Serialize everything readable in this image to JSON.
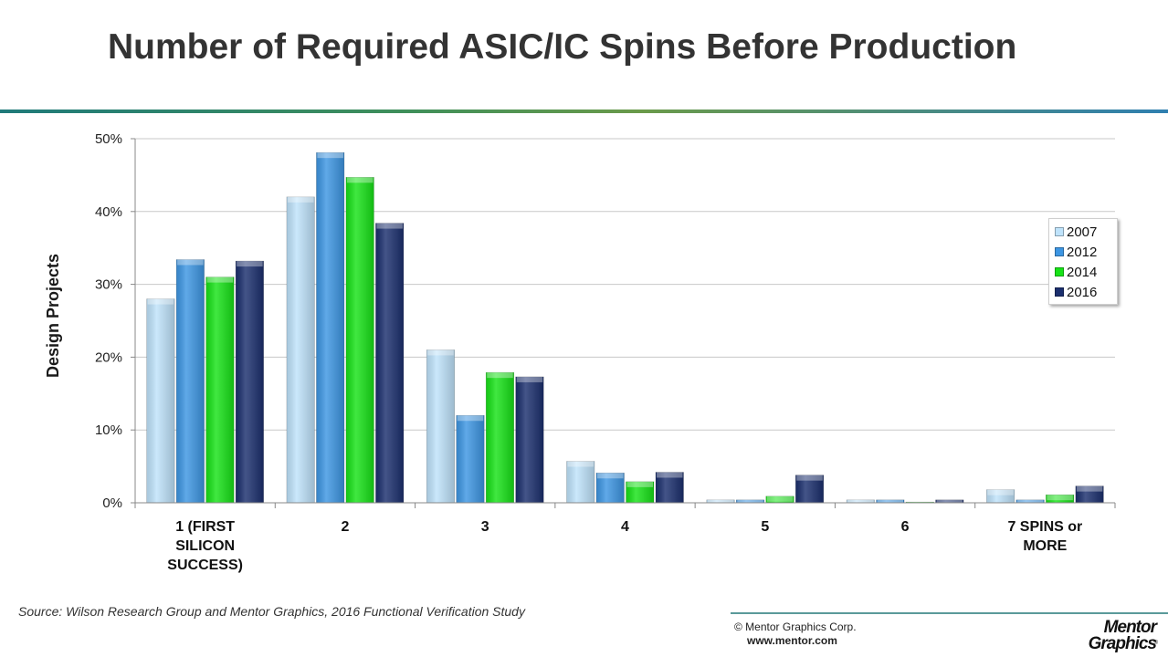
{
  "slide": {
    "title": "Number of Required ASIC/IC Spins Before Production",
    "source": "Source:  Wilson Research Group and Mentor Graphics, 2016 Functional Verification Study",
    "copyright": "© Mentor Graphics Corp.",
    "website": "www.mentor.com",
    "logo_text": [
      "Mentor",
      "Graphics"
    ],
    "logo_mark": "®"
  },
  "chart_data": {
    "type": "bar",
    "title": "Number of Required ASIC/IC Spins Before Production",
    "xlabel": "",
    "ylabel": "Design Projects",
    "ylim": [
      0,
      50
    ],
    "yticks": [
      0,
      10,
      20,
      30,
      40,
      50
    ],
    "ytick_labels": [
      "0%",
      "10%",
      "20%",
      "30%",
      "40%",
      "50%"
    ],
    "grid": true,
    "legend_position": "right",
    "categories": [
      [
        "1 (FIRST",
        "SILICON",
        "SUCCESS)"
      ],
      [
        "2"
      ],
      [
        "3"
      ],
      [
        "4"
      ],
      [
        "5"
      ],
      [
        "6"
      ],
      [
        "7 SPINS or",
        "MORE"
      ]
    ],
    "series": [
      {
        "name": "2007",
        "color": "#bfe3fb",
        "values": [
          28,
          42,
          21,
          5.7,
          0.4,
          0.4,
          1.8
        ]
      },
      {
        "name": "2012",
        "color": "#3d96e3",
        "values": [
          33.4,
          48.1,
          12,
          4.1,
          0.4,
          0.4,
          0.4
        ]
      },
      {
        "name": "2014",
        "color": "#17e317",
        "values": [
          31,
          44.7,
          17.9,
          2.9,
          0.9,
          0.1,
          1.1
        ]
      },
      {
        "name": "2016",
        "color": "#1b2f6e",
        "values": [
          33.2,
          38.4,
          17.3,
          4.2,
          3.8,
          0.4,
          2.3
        ]
      }
    ]
  }
}
